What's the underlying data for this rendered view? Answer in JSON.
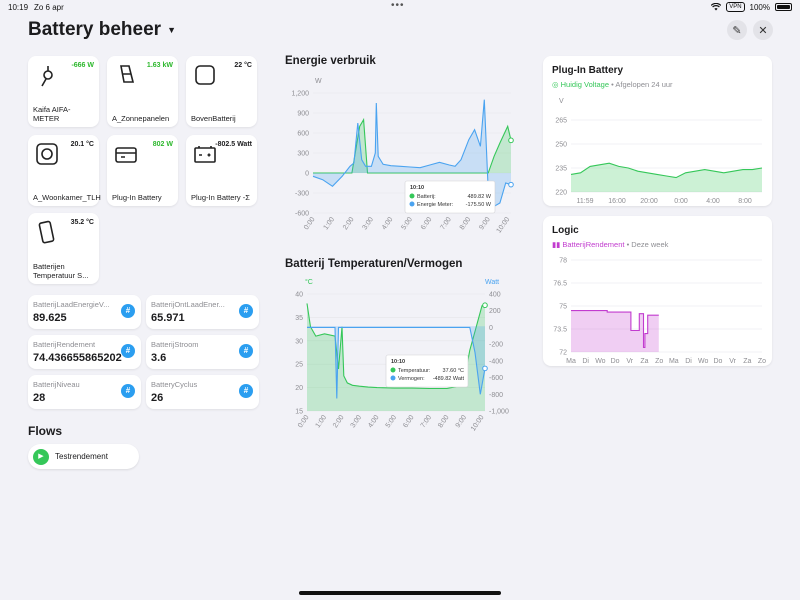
{
  "status": {
    "time": "10:19",
    "date": "Zo 6 apr",
    "vpn": "VPN",
    "battery": "100%"
  },
  "header": {
    "title": "Battery beheer"
  },
  "tiles": [
    {
      "label": "Kaifa AIFA-METER",
      "value": "-666 W",
      "color": "green",
      "icon": "plug-icon"
    },
    {
      "label": "A_Zonnepanelen",
      "value": "1.63 kW",
      "color": "green",
      "icon": "solar-panel-icon"
    },
    {
      "label": "BovenBatterij",
      "value": "22 °C",
      "color": "black",
      "icon": "rounded-square-icon"
    },
    {
      "label": "A_Woonkamer_TLH",
      "value": "20.1 °C",
      "color": "black",
      "icon": "sensor-icon"
    },
    {
      "label": "Plug-In Battery",
      "value": "802 W",
      "color": "green",
      "icon": "battery-box-icon"
    },
    {
      "label": "Plug-In Battery -Σ",
      "value": "-802.5 Watt",
      "color": "black",
      "icon": "car-battery-icon"
    },
    {
      "label": "Batterijen Temperatuur S...",
      "value": "35.2 °C",
      "color": "black",
      "icon": "phone-sensor-icon"
    }
  ],
  "variables": [
    {
      "name": "BatterijLaadEnergieV...",
      "value": "89.625"
    },
    {
      "name": "BatterijOntLaadEner...",
      "value": "65.971"
    },
    {
      "name": "BatterijRendement",
      "value": "74.436655865202"
    },
    {
      "name": "BatterijStroom",
      "value": "3.6"
    },
    {
      "name": "BatterijNiveau",
      "value": "28"
    },
    {
      "name": "BatteryCyclus",
      "value": "26"
    }
  ],
  "variable_icon": "#",
  "flows": {
    "title": "Flows",
    "items": [
      {
        "label": "Testrendement"
      }
    ]
  },
  "energy_chart": {
    "title": "Energie verbruik",
    "tooltip": {
      "time": "10:10",
      "rows": [
        {
          "label": "Batterij",
          "value": "489.82 W",
          "color": "#35c759"
        },
        {
          "label": "Energie Meter",
          "value": "-175.50 W",
          "color": "#4aa3f0"
        }
      ]
    }
  },
  "temp_chart": {
    "title": "Batterij Temperaturen/Vermogen",
    "tooltip": {
      "time": "10:10",
      "rows": [
        {
          "label": "Temperatuur",
          "value": "37.60 °C",
          "color": "#35c759"
        },
        {
          "label": "Vermogen",
          "value": "-489.82 Watt",
          "color": "#4aa3f0"
        }
      ]
    }
  },
  "plugin_card": {
    "title": "Plug-In Battery",
    "legend": "Huidig Voltage",
    "period": "Afgelopen 24 uur"
  },
  "logic_card": {
    "title": "Logic",
    "legend": "BatterijRendement",
    "period": "Deze week"
  },
  "chart_data": [
    {
      "type": "area",
      "title": "Energie verbruik",
      "ylabel": "W",
      "ylim": [
        -600,
        1200
      ],
      "yticks": [
        "1,200",
        "900",
        "600",
        "300",
        "0",
        "-300",
        "-600"
      ],
      "xticks": [
        "0:00",
        "1:00",
        "2:00",
        "3:00",
        "4:00",
        "5:00",
        "6:00",
        "7:00",
        "8:00",
        "9:00",
        "10:00"
      ],
      "series": [
        {
          "name": "Batterij",
          "color": "#35c759",
          "x": [
            0,
            0.5,
            1.0,
            1.5,
            2.0,
            2.2,
            2.4,
            2.6,
            2.8,
            3.0,
            4.0,
            5.0,
            6.0,
            7.0,
            8.0,
            8.5,
            9.0,
            9.3,
            9.6,
            10.0,
            10.17
          ],
          "y": [
            0,
            0,
            0,
            0,
            0,
            350,
            700,
            800,
            0,
            0,
            0,
            0,
            0,
            0,
            0,
            0,
            0,
            250,
            450,
            700,
            490
          ]
        },
        {
          "name": "Energie Meter",
          "color": "#4aa3f0",
          "x": [
            0,
            0.5,
            1.0,
            1.5,
            1.9,
            2.1,
            2.3,
            2.5,
            2.7,
            3.0,
            3.2,
            3.25,
            3.35,
            3.6,
            4.0,
            4.5,
            5.0,
            5.5,
            6.0,
            6.5,
            7.0,
            7.3,
            7.6,
            8.0,
            8.3,
            8.6,
            8.8,
            9.0,
            9.3,
            9.6,
            9.9,
            10.17
          ],
          "y": [
            -50,
            -100,
            -200,
            -50,
            100,
            150,
            750,
            200,
            100,
            100,
            300,
            1050,
            250,
            130,
            110,
            100,
            90,
            80,
            120,
            160,
            120,
            100,
            200,
            500,
            650,
            400,
            1100,
            -250,
            -500,
            -450,
            -150,
            -175
          ]
        }
      ]
    },
    {
      "type": "area",
      "title": "Batterij Temperaturen/Vermogen",
      "ylabel": "°C",
      "y2label": "Watt",
      "ylim": [
        15,
        40
      ],
      "y2lim": [
        -1000,
        400
      ],
      "yticks": [
        "40",
        "35",
        "30",
        "25",
        "20",
        "15"
      ],
      "y2ticks": [
        "400",
        "200",
        "0",
        "-200",
        "-400",
        "-600",
        "-800",
        "-1,000"
      ],
      "xticks": [
        "0:00",
        "1:00",
        "2:00",
        "3:00",
        "4:00",
        "5:00",
        "6:00",
        "7:00",
        "8:00",
        "9:00",
        "10:00"
      ],
      "series": [
        {
          "name": "Temperatuur",
          "axis": "left",
          "color": "#35c759",
          "x": [
            0,
            0.2,
            0.5,
            1.0,
            1.6,
            1.8,
            2.0,
            2.1,
            2.3,
            2.6,
            3.0,
            3.5,
            4.0,
            5.0,
            6.0,
            7.0,
            8.0,
            8.5,
            9.0,
            9.3,
            9.6,
            10.0,
            10.17
          ],
          "y": [
            38,
            33,
            31,
            31.5,
            31,
            24,
            33,
            22.5,
            21,
            20.5,
            20.3,
            20.1,
            20.0,
            19.9,
            19.9,
            19.8,
            19.8,
            20.2,
            22,
            28,
            32,
            37.5,
            37.6
          ]
        },
        {
          "name": "Vermogen",
          "axis": "right",
          "color": "#4aa3f0",
          "x": [
            0,
            0.5,
            1.0,
            1.5,
            1.6,
            1.7,
            1.8,
            2.0,
            2.2,
            4.0,
            6.0,
            8.0,
            8.8,
            9.0,
            9.3,
            9.6,
            9.9,
            10.17
          ],
          "y": [
            0,
            0,
            0,
            0,
            0,
            -850,
            0,
            0,
            0,
            0,
            0,
            0,
            0,
            0,
            0,
            -300,
            -800,
            -490
          ]
        }
      ]
    },
    {
      "type": "area",
      "title": "Plug-In Battery",
      "ylabel": "V",
      "ylim": [
        220,
        265
      ],
      "yticks": [
        "265",
        "250",
        "235",
        "220"
      ],
      "xticks": [
        "11:59",
        "16:00",
        "20:00",
        "0:00",
        "4:00",
        "8:00"
      ],
      "series": [
        {
          "name": "Huidig Voltage",
          "color": "#35c759",
          "x": [
            0,
            0.05,
            0.1,
            0.15,
            0.2,
            0.25,
            0.3,
            0.35,
            0.4,
            0.45,
            0.5,
            0.55,
            0.6,
            0.65,
            0.7,
            0.75,
            0.8,
            0.85,
            0.9,
            0.95,
            1.0
          ],
          "y": [
            231,
            232,
            236,
            237,
            238,
            236,
            235,
            233,
            232,
            231,
            230,
            229,
            232,
            233,
            234,
            233,
            232,
            233,
            234,
            234,
            235
          ]
        }
      ]
    },
    {
      "type": "area",
      "title": "Logic",
      "ylim": [
        72,
        78
      ],
      "yticks": [
        "78",
        "76.5",
        "75",
        "73.5",
        "72"
      ],
      "xticks": [
        "Ma",
        "Di",
        "Wo",
        "Do",
        "Vr",
        "Za",
        "Zo",
        "Ma",
        "Di",
        "Wo",
        "Do",
        "Vr",
        "Za",
        "Zo"
      ],
      "series": [
        {
          "name": "BatterijRendement",
          "color": "#c23ccf",
          "x": [
            0,
            2.6,
            2.6,
            4.3,
            4.3,
            4.9,
            4.9,
            5.2,
            5.2,
            5.3,
            5.3,
            5.5,
            5.5,
            6.3
          ],
          "y": [
            74.7,
            74.7,
            74.6,
            74.6,
            73.4,
            73.4,
            74.5,
            74.5,
            72.3,
            72.3,
            73.2,
            73.2,
            74.4,
            74.4
          ]
        }
      ]
    }
  ]
}
